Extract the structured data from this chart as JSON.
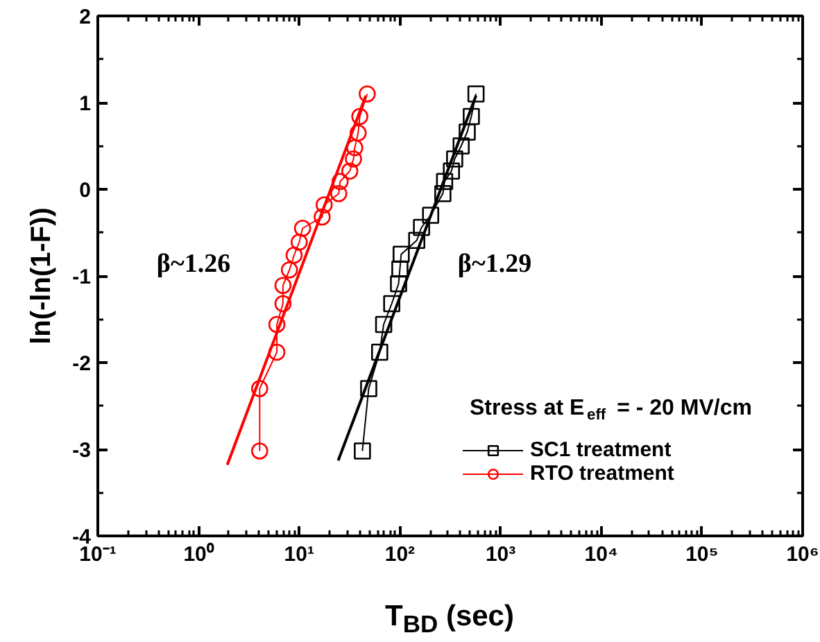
{
  "chart_data": {
    "type": "line",
    "xlabel": "T$_{BD}$ (sec)",
    "ylabel": "ln(-ln(1-F))",
    "legend_title": "Stress at E$_{eff}$= - 20 MV/cm",
    "log": "x",
    "grid": false,
    "legend": "bottom right",
    "xlim": [
      0.1,
      1000000
    ],
    "ylim": [
      -4,
      2
    ],
    "xticks": [
      {
        "value": 0.1,
        "label": "10⁻¹"
      },
      {
        "value": 1,
        "label": "10⁰"
      },
      {
        "value": 10,
        "label": "10¹"
      },
      {
        "value": 100,
        "label": "10²"
      },
      {
        "value": 1000,
        "label": "10³"
      },
      {
        "value": 10000,
        "label": "10⁴"
      },
      {
        "value": 100000,
        "label": "10⁵"
      },
      {
        "value": 1000000,
        "label": "10⁶"
      }
    ],
    "yticks": [
      -4,
      -3,
      -2,
      -1,
      0,
      1,
      2
    ],
    "annotations": [
      "β~1.26",
      "β~1.29"
    ],
    "series": [
      {
        "name": "SC1 treatment",
        "color": "#000000",
        "marker": "square",
        "x": [
          42.4,
          49,
          63,
          69,
          83,
          97,
          100,
          103,
          147,
          164,
          202,
          267,
          278,
          325,
          350,
          406,
          466,
          512,
          570
        ],
        "values": [
          -3.02,
          -2.3,
          -1.88,
          -1.56,
          -1.32,
          -1.09,
          -0.92,
          -0.75,
          -0.59,
          -0.44,
          -0.3,
          -0.05,
          0.09,
          0.21,
          0.35,
          0.5,
          0.66,
          0.84,
          1.1
        ]
      },
      {
        "name": "RTO treatment",
        "color": "#ff0000",
        "marker": "circle",
        "x": [
          4.05,
          4.05,
          6.0,
          6.0,
          6.9,
          6.9,
          8.0,
          8.9,
          10.0,
          10.8,
          16.9,
          17.7,
          24.7,
          25.5,
          31.8,
          34.6,
          35.6,
          38.5,
          40,
          47.4
        ],
        "values": [
          -3.02,
          -2.3,
          -1.88,
          -1.56,
          -1.32,
          -1.11,
          -0.93,
          -0.76,
          -0.61,
          -0.45,
          -0.32,
          -0.18,
          -0.05,
          0.09,
          0.21,
          0.35,
          0.48,
          0.65,
          0.84,
          1.1
        ]
      },
      {
        "color": "#000000",
        "marker": "none",
        "x": [
          24.4,
          570
        ],
        "values": [
          -3.13,
          1.08
        ]
      },
      {
        "color": "#ff0000",
        "marker": "none",
        "x": [
          1.93,
          45.9
        ],
        "values": [
          -3.18,
          1.08
        ]
      }
    ]
  }
}
